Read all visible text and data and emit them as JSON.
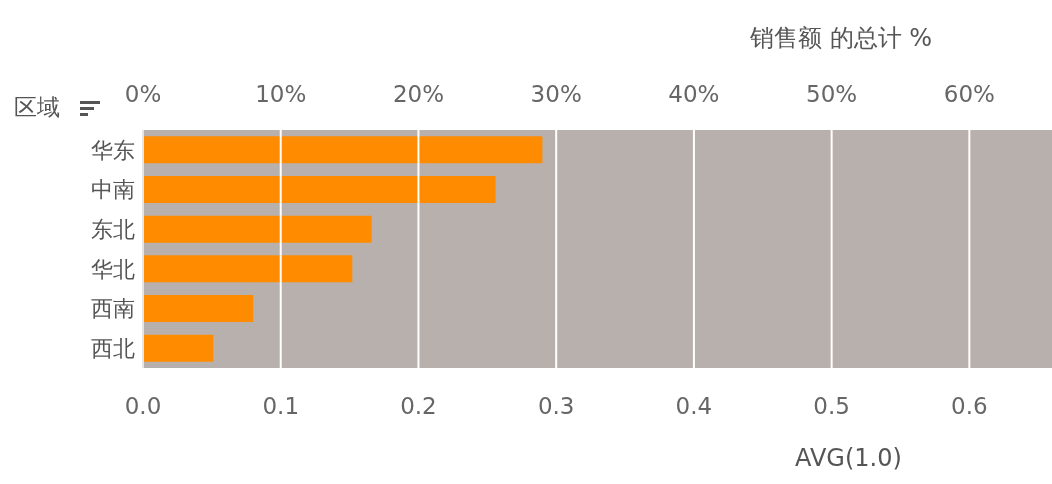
{
  "chart_data": {
    "type": "bar",
    "orientation": "horizontal",
    "x2label": "销售额 的总计 %",
    "xlabel": "AVG(1.0)",
    "ylabel": "区域",
    "categories": [
      "华东",
      "中南",
      "东北",
      "华北",
      "西南",
      "西北"
    ],
    "series": [
      {
        "color": "#ff8c00",
        "axis": "x2",
        "values": [
          29.0,
          25.6,
          16.6,
          15.2,
          8.0,
          5.1
        ]
      }
    ],
    "bands": [
      {
        "axis": "x",
        "from": 0,
        "to": 0.66,
        "color": "#b8b0ad"
      }
    ],
    "xlim": [
      0,
      0.66
    ],
    "xticks": [
      {
        "value": 0,
        "label": "0.0"
      },
      {
        "value": 0.1,
        "label": "0.1"
      },
      {
        "value": 0.2,
        "label": "0.2"
      },
      {
        "value": 0.3,
        "label": "0.3"
      },
      {
        "value": 0.4,
        "label": "0.4"
      },
      {
        "value": 0.5,
        "label": "0.5"
      },
      {
        "value": 0.6,
        "label": "0.6"
      }
    ],
    "x2lim": [
      0,
      66
    ],
    "x2ticks": [
      {
        "value": 0,
        "label": "0%"
      },
      {
        "value": 10,
        "label": "10%"
      },
      {
        "value": 20,
        "label": "20%"
      },
      {
        "value": 30,
        "label": "30%"
      },
      {
        "value": 40,
        "label": "40%"
      },
      {
        "value": 50,
        "label": "50%"
      },
      {
        "value": 60,
        "label": "60%"
      }
    ],
    "grid": "x",
    "legend": false
  }
}
